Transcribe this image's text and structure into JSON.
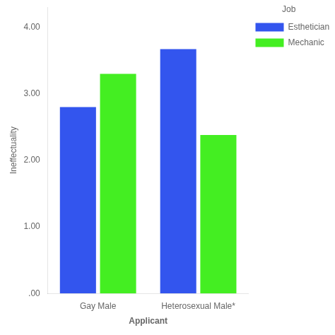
{
  "chart_data": {
    "type": "bar",
    "categories": [
      "Gay Male",
      "Heterosexual Male*"
    ],
    "series": [
      {
        "name": "Esthetician",
        "color": "#3355EE",
        "values": [
          2.8,
          3.67
        ]
      },
      {
        "name": "Mechanic",
        "color": "#44EE22",
        "values": [
          3.3,
          2.38
        ]
      }
    ],
    "xlabel": "Applicant",
    "ylabel": "Ineffectuality",
    "legend_title": "Job",
    "legend": "upper right",
    "ylim": [
      0.0,
      4.3
    ],
    "yticks": [
      {
        "value": 0.0,
        "label": ".00"
      },
      {
        "value": 1.0,
        "label": "1.00"
      },
      {
        "value": 2.0,
        "label": "2.00"
      },
      {
        "value": 3.0,
        "label": "3.00"
      },
      {
        "value": 4.0,
        "label": "4.00"
      }
    ],
    "grid": false
  }
}
